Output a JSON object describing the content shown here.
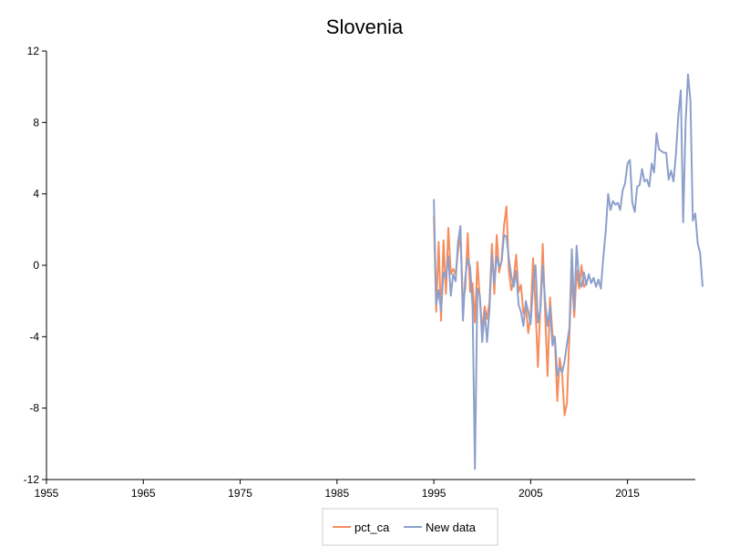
{
  "chart_data": {
    "type": "line",
    "title": "Slovenia",
    "xlabel": "",
    "ylabel": "",
    "xlim": [
      1955,
      2022
    ],
    "ylim": [
      -12,
      12
    ],
    "x_ticks": [
      1955,
      1965,
      1975,
      1985,
      1995,
      2005,
      2015
    ],
    "y_ticks": [
      -12,
      -8,
      -4,
      0,
      4,
      8,
      12
    ],
    "x_tick_labels": [
      "1955",
      "1965",
      "1975",
      "1985",
      "1995",
      "2005",
      "2015"
    ],
    "y_tick_labels": [
      "-12",
      "-8",
      "-4",
      "0",
      "4",
      "8",
      "12"
    ],
    "grid": false,
    "legend_position": "bottom-center",
    "series": [
      {
        "name": "pct_ca",
        "color": "#f58d5e",
        "points": [
          [
            1995.0,
            2.8
          ],
          [
            1995.25,
            -2.6
          ],
          [
            1995.5,
            1.3
          ],
          [
            1995.75,
            -3.1
          ],
          [
            1996.0,
            1.4
          ],
          [
            1996.25,
            -1.6
          ],
          [
            1996.5,
            2.1
          ],
          [
            1996.75,
            -0.5
          ],
          [
            1997.0,
            -0.2
          ],
          [
            1997.25,
            -0.5
          ],
          [
            1997.5,
            0.8
          ],
          [
            1997.75,
            1.7
          ],
          [
            1998.0,
            -2.0
          ],
          [
            1998.25,
            -1.3
          ],
          [
            1998.5,
            1.8
          ],
          [
            1998.75,
            -1.5
          ],
          [
            1999.0,
            -1.0
          ],
          [
            1999.25,
            -3.2
          ],
          [
            1999.5,
            0.2
          ],
          [
            1999.75,
            -1.9
          ],
          [
            2000.0,
            -3.6
          ],
          [
            2000.25,
            -2.3
          ],
          [
            2000.5,
            -3.0
          ],
          [
            2000.75,
            -2.0
          ],
          [
            2001.0,
            1.2
          ],
          [
            2001.25,
            -1.6
          ],
          [
            2001.5,
            1.7
          ],
          [
            2001.75,
            -0.4
          ],
          [
            2002.0,
            0.3
          ],
          [
            2002.25,
            2.2
          ],
          [
            2002.5,
            3.3
          ],
          [
            2002.75,
            -0.3
          ],
          [
            2003.0,
            -1.4
          ],
          [
            2003.25,
            -0.8
          ],
          [
            2003.5,
            0.6
          ],
          [
            2003.75,
            -1.5
          ],
          [
            2004.0,
            -1.1
          ],
          [
            2004.25,
            -2.7
          ],
          [
            2004.5,
            -2.3
          ],
          [
            2004.75,
            -3.8
          ],
          [
            2005.0,
            -2.8
          ],
          [
            2005.25,
            0.4
          ],
          [
            2005.5,
            -2.4
          ],
          [
            2005.75,
            -5.7
          ],
          [
            2006.0,
            -2.3
          ],
          [
            2006.25,
            1.2
          ],
          [
            2006.5,
            -2.8
          ],
          [
            2006.75,
            -6.2
          ],
          [
            2007.0,
            -1.8
          ],
          [
            2007.25,
            -3.9
          ],
          [
            2007.5,
            -4.2
          ],
          [
            2007.75,
            -7.6
          ],
          [
            2008.0,
            -5.2
          ],
          [
            2008.25,
            -6.1
          ],
          [
            2008.5,
            -8.4
          ],
          [
            2008.75,
            -7.7
          ],
          [
            2009.0,
            -3.8
          ],
          [
            2009.25,
            -0.5
          ],
          [
            2009.5,
            -2.9
          ],
          [
            2009.75,
            -0.3
          ],
          [
            2010.0,
            -1.3
          ],
          [
            2010.25,
            0.0
          ],
          [
            2010.5,
            -1.2
          ],
          [
            2010.75,
            -1.0
          ]
        ]
      },
      {
        "name": "New data",
        "color": "#8da0cb",
        "points": [
          [
            1995.0,
            3.7
          ],
          [
            1995.25,
            -2.2
          ],
          [
            1995.5,
            -1.4
          ],
          [
            1995.75,
            -2.6
          ],
          [
            1996.0,
            -0.4
          ],
          [
            1996.25,
            -0.7
          ],
          [
            1996.5,
            0.5
          ],
          [
            1996.75,
            -1.7
          ],
          [
            1997.0,
            -0.5
          ],
          [
            1997.25,
            -0.9
          ],
          [
            1997.5,
            1.3
          ],
          [
            1997.75,
            2.2
          ],
          [
            1998.0,
            -3.1
          ],
          [
            1998.25,
            -0.7
          ],
          [
            1998.5,
            0.4
          ],
          [
            1998.75,
            -0.1
          ],
          [
            1999.0,
            -2.3
          ],
          [
            1999.25,
            -11.4
          ],
          [
            1999.5,
            -1.3
          ],
          [
            1999.75,
            -1.7
          ],
          [
            2000.0,
            -4.3
          ],
          [
            2000.25,
            -2.6
          ],
          [
            2000.5,
            -4.3
          ],
          [
            2000.75,
            -2.4
          ],
          [
            2001.0,
            0.6
          ],
          [
            2001.25,
            -1.0
          ],
          [
            2001.5,
            0.5
          ],
          [
            2001.75,
            -0.1
          ],
          [
            2002.0,
            0.2
          ],
          [
            2002.25,
            1.7
          ],
          [
            2002.5,
            1.6
          ],
          [
            2002.75,
            0.4
          ],
          [
            2003.0,
            -0.6
          ],
          [
            2003.25,
            -1.2
          ],
          [
            2003.5,
            -0.3
          ],
          [
            2003.75,
            -2.2
          ],
          [
            2004.0,
            -2.6
          ],
          [
            2004.25,
            -3.4
          ],
          [
            2004.5,
            -2.0
          ],
          [
            2004.75,
            -2.6
          ],
          [
            2005.0,
            -3.3
          ],
          [
            2005.25,
            -1.1
          ],
          [
            2005.5,
            0.0
          ],
          [
            2005.75,
            -3.2
          ],
          [
            2006.0,
            -2.5
          ],
          [
            2006.25,
            0.0
          ],
          [
            2006.5,
            -2.0
          ],
          [
            2006.75,
            -3.4
          ],
          [
            2007.0,
            -2.3
          ],
          [
            2007.25,
            -4.5
          ],
          [
            2007.5,
            -4.0
          ],
          [
            2007.75,
            -6.2
          ],
          [
            2008.0,
            -5.7
          ],
          [
            2008.25,
            -6.0
          ],
          [
            2008.5,
            -5.4
          ],
          [
            2008.75,
            -4.4
          ],
          [
            2009.0,
            -3.5
          ],
          [
            2009.25,
            0.9
          ],
          [
            2009.5,
            -2.5
          ],
          [
            2009.75,
            1.1
          ],
          [
            2010.0,
            -0.9
          ],
          [
            2010.25,
            -1.2
          ],
          [
            2010.5,
            -0.4
          ],
          [
            2010.75,
            -1.1
          ],
          [
            2011.0,
            -0.5
          ],
          [
            2011.25,
            -1.0
          ],
          [
            2011.5,
            -0.7
          ],
          [
            2011.75,
            -1.2
          ],
          [
            2012.0,
            -0.8
          ],
          [
            2012.25,
            -1.3
          ],
          [
            2012.5,
            0.4
          ],
          [
            2012.75,
            1.9
          ],
          [
            2013.0,
            4.0
          ],
          [
            2013.25,
            3.1
          ],
          [
            2013.5,
            3.6
          ],
          [
            2013.75,
            3.4
          ],
          [
            2014.0,
            3.5
          ],
          [
            2014.25,
            3.1
          ],
          [
            2014.5,
            4.2
          ],
          [
            2014.75,
            4.6
          ],
          [
            2015.0,
            5.7
          ],
          [
            2015.25,
            5.9
          ],
          [
            2015.5,
            3.5
          ],
          [
            2015.75,
            3.0
          ],
          [
            2016.0,
            4.4
          ],
          [
            2016.25,
            4.5
          ],
          [
            2016.5,
            5.4
          ],
          [
            2016.75,
            4.7
          ],
          [
            2017.0,
            4.8
          ],
          [
            2017.25,
            4.4
          ],
          [
            2017.5,
            5.7
          ],
          [
            2017.75,
            5.2
          ],
          [
            2018.0,
            7.4
          ],
          [
            2018.25,
            6.5
          ],
          [
            2018.5,
            6.4
          ],
          [
            2018.75,
            6.3
          ],
          [
            2019.0,
            6.3
          ],
          [
            2019.25,
            4.8
          ],
          [
            2019.5,
            5.3
          ],
          [
            2019.75,
            4.7
          ],
          [
            2020.0,
            6.2
          ],
          [
            2020.25,
            8.4
          ],
          [
            2020.5,
            9.8
          ],
          [
            2020.75,
            2.4
          ],
          [
            2021.0,
            8.0
          ],
          [
            2021.25,
            10.7
          ],
          [
            2021.5,
            9.2
          ],
          [
            2021.75,
            2.5
          ],
          [
            2022.0,
            2.9
          ],
          [
            2022.25,
            1.2
          ],
          [
            2022.5,
            0.7
          ],
          [
            2022.75,
            -1.2
          ]
        ]
      }
    ]
  }
}
